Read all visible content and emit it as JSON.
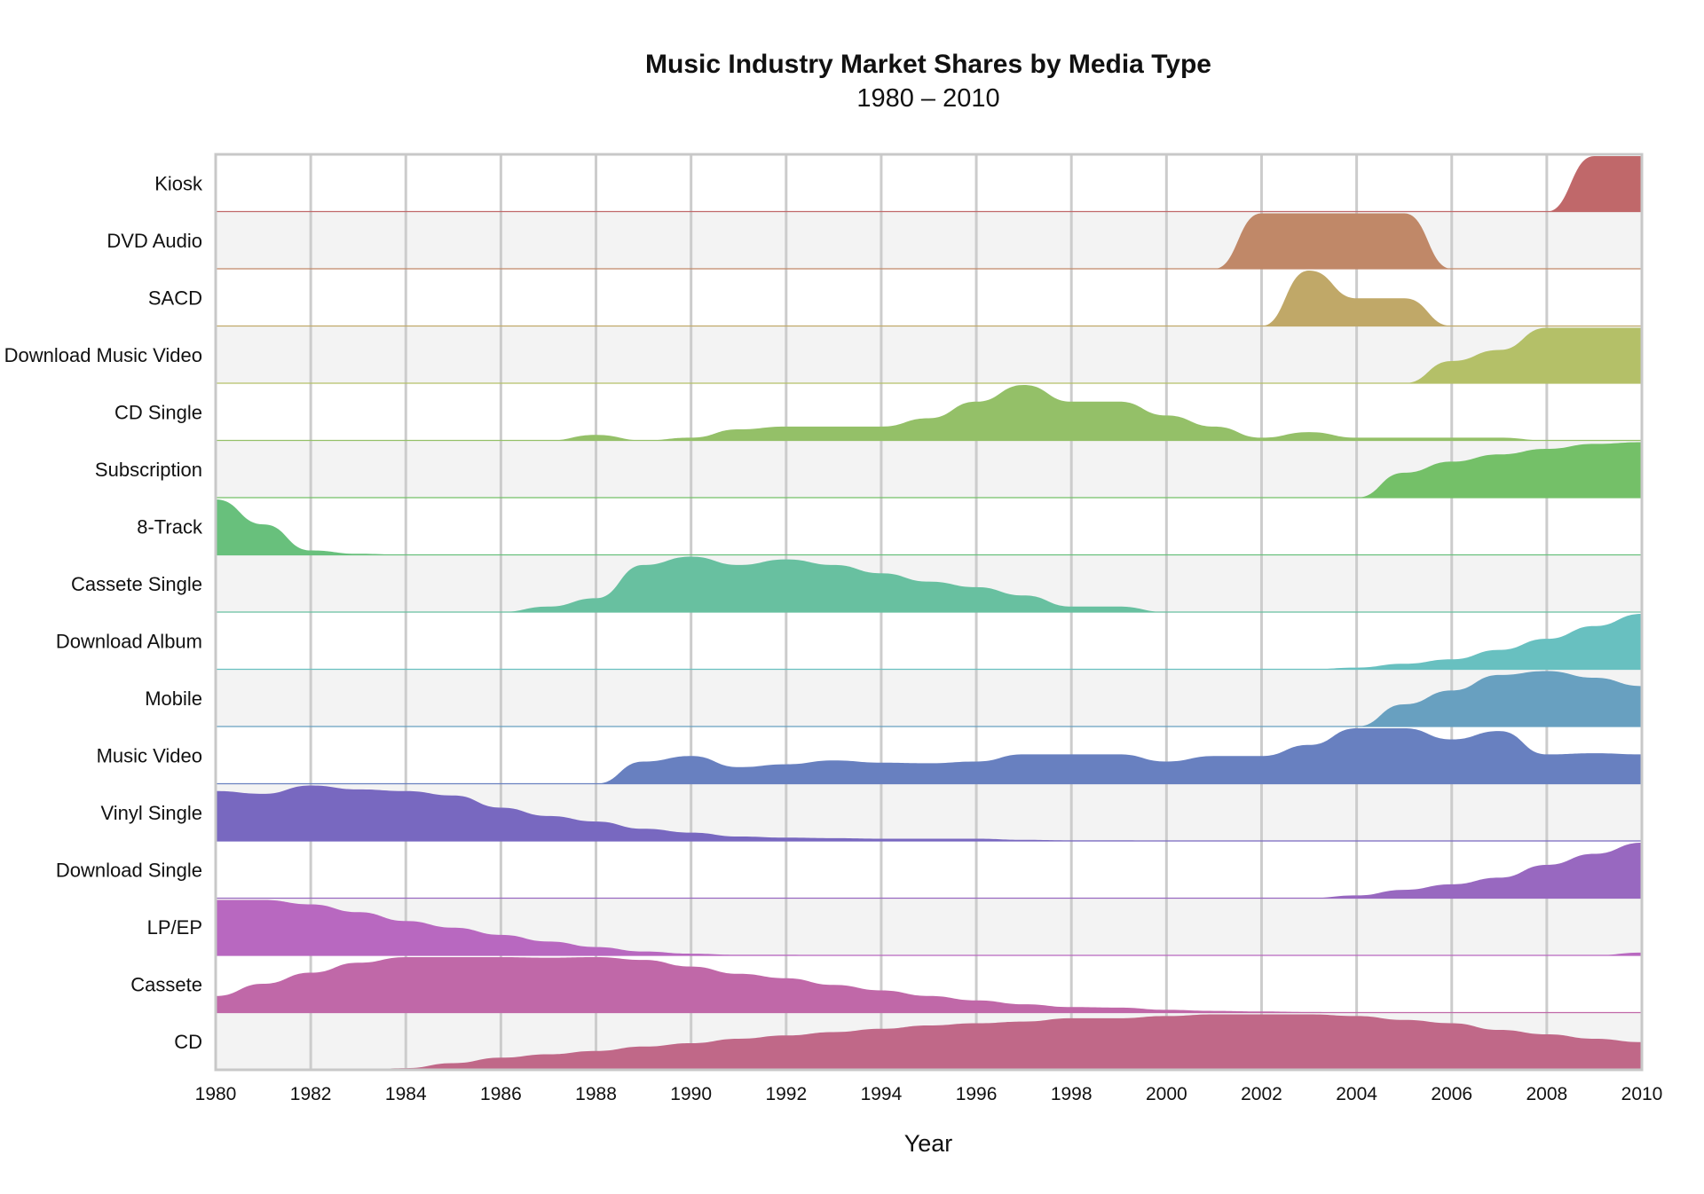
{
  "chart_data": {
    "type": "area",
    "layout": "small-multiples ridgeline, one row per media type, each row scaled to its own maximum",
    "title": "Music Industry Market Shares by Media Type",
    "subtitle": "1980 – 2010",
    "xlabel": "Year",
    "ylabel": "",
    "xlim": [
      1980,
      2010
    ],
    "ylim": [
      0,
      1
    ],
    "grid": true,
    "legend": "none",
    "x_ticks": [
      "1980",
      "1982",
      "1984",
      "1986",
      "1988",
      "1990",
      "1992",
      "1994",
      "1996",
      "1998",
      "2000",
      "2002",
      "2004",
      "2006",
      "2008",
      "2010"
    ],
    "x": [
      1980,
      1981,
      1982,
      1983,
      1984,
      1985,
      1986,
      1987,
      1988,
      1989,
      1990,
      1991,
      1992,
      1993,
      1994,
      1995,
      1996,
      1997,
      1998,
      1999,
      2000,
      2001,
      2002,
      2003,
      2004,
      2005,
      2006,
      2007,
      2008,
      2009,
      2010
    ],
    "series": [
      {
        "name": "Kiosk",
        "color": "#c0686a",
        "values": [
          0,
          0,
          0,
          0,
          0,
          0,
          0,
          0,
          0,
          0,
          0,
          0,
          0,
          0,
          0,
          0,
          0,
          0,
          0,
          0,
          0,
          0,
          0,
          0,
          0,
          0,
          0,
          0,
          0,
          1,
          1
        ]
      },
      {
        "name": "DVD Audio",
        "color": "#c08868",
        "values": [
          0,
          0,
          0,
          0,
          0,
          0,
          0,
          0,
          0,
          0,
          0,
          0,
          0,
          0,
          0,
          0,
          0,
          0,
          0,
          0,
          0,
          0,
          1,
          1,
          1,
          1,
          0,
          0,
          0,
          0,
          0
        ]
      },
      {
        "name": "SACD",
        "color": "#c0a868",
        "values": [
          0,
          0,
          0,
          0,
          0,
          0,
          0,
          0,
          0,
          0,
          0,
          0,
          0,
          0,
          0,
          0,
          0,
          0,
          0,
          0,
          0,
          0,
          0,
          1,
          0.5,
          0.5,
          0,
          0,
          0,
          0,
          0
        ]
      },
      {
        "name": "Download Music Video",
        "color": "#b4c068",
        "values": [
          0,
          0,
          0,
          0,
          0,
          0,
          0,
          0,
          0,
          0,
          0,
          0,
          0,
          0,
          0,
          0,
          0,
          0,
          0,
          0,
          0,
          0,
          0,
          0,
          0,
          0,
          0.4,
          0.6,
          1,
          1,
          1
        ]
      },
      {
        "name": "CD Single",
        "color": "#94c068",
        "values": [
          0,
          0,
          0,
          0,
          0,
          0,
          0,
          0,
          0.1,
          0,
          0.05,
          0.2,
          0.25,
          0.25,
          0.25,
          0.4,
          0.7,
          1,
          0.7,
          0.7,
          0.45,
          0.25,
          0.05,
          0.15,
          0.05,
          0.05,
          0.05,
          0.05,
          0,
          0,
          0
        ]
      },
      {
        "name": "Subscription",
        "color": "#74c068",
        "values": [
          0,
          0,
          0,
          0,
          0,
          0,
          0,
          0,
          0,
          0,
          0,
          0,
          0,
          0,
          0,
          0,
          0,
          0,
          0,
          0,
          0,
          0,
          0,
          0,
          0,
          0.45,
          0.65,
          0.78,
          0.88,
          0.97,
          1
        ]
      },
      {
        "name": "8-Track",
        "color": "#68c07c",
        "values": [
          1,
          0.55,
          0.08,
          0.02,
          0,
          0,
          0,
          0,
          0,
          0,
          0,
          0,
          0,
          0,
          0,
          0,
          0,
          0,
          0,
          0,
          0,
          0,
          0,
          0,
          0,
          0,
          0,
          0,
          0,
          0,
          0
        ]
      },
      {
        "name": "Cassete Single",
        "color": "#68c0a0",
        "values": [
          0,
          0,
          0,
          0,
          0,
          0,
          0,
          0.1,
          0.25,
          0.85,
          1,
          0.85,
          0.95,
          0.85,
          0.7,
          0.55,
          0.45,
          0.3,
          0.1,
          0.1,
          0,
          0,
          0,
          0,
          0,
          0,
          0,
          0,
          0,
          0,
          0
        ]
      },
      {
        "name": "Download Album",
        "color": "#68c0c0",
        "values": [
          0,
          0,
          0,
          0,
          0,
          0,
          0,
          0,
          0,
          0,
          0,
          0,
          0,
          0,
          0,
          0,
          0,
          0,
          0,
          0,
          0,
          0,
          0,
          0,
          0.03,
          0.1,
          0.18,
          0.35,
          0.55,
          0.78,
          1
        ]
      },
      {
        "name": "Mobile",
        "color": "#68a0c0",
        "values": [
          0,
          0,
          0,
          0,
          0,
          0,
          0,
          0,
          0,
          0,
          0,
          0,
          0,
          0,
          0,
          0,
          0,
          0,
          0,
          0,
          0,
          0,
          0,
          0,
          0,
          0.4,
          0.65,
          0.93,
          1,
          0.88,
          0.73
        ]
      },
      {
        "name": "Music Video",
        "color": "#6880c0",
        "values": [
          0,
          0,
          0,
          0,
          0,
          0,
          0,
          0,
          0,
          0.4,
          0.5,
          0.3,
          0.35,
          0.42,
          0.38,
          0.37,
          0.4,
          0.53,
          0.53,
          0.53,
          0.4,
          0.5,
          0.5,
          0.7,
          1,
          1,
          0.8,
          0.95,
          0.53,
          0.55,
          0.53
        ]
      },
      {
        "name": "Vinyl Single",
        "color": "#7868c0",
        "values": [
          0.9,
          0.85,
          1,
          0.93,
          0.9,
          0.82,
          0.6,
          0.45,
          0.35,
          0.22,
          0.15,
          0.08,
          0.06,
          0.05,
          0.04,
          0.04,
          0.04,
          0.02,
          0.01,
          0.01,
          0,
          0,
          0,
          0,
          0,
          0,
          0,
          0,
          0,
          0,
          0
        ]
      },
      {
        "name": "Download Single",
        "color": "#9868c0",
        "values": [
          0,
          0,
          0,
          0,
          0,
          0,
          0,
          0,
          0,
          0,
          0,
          0,
          0,
          0,
          0,
          0,
          0,
          0,
          0,
          0,
          0,
          0,
          0,
          0,
          0.05,
          0.15,
          0.25,
          0.37,
          0.6,
          0.8,
          1
        ]
      },
      {
        "name": "LP/EP",
        "color": "#b868c0",
        "values": [
          1,
          1,
          0.92,
          0.78,
          0.62,
          0.5,
          0.37,
          0.25,
          0.15,
          0.07,
          0.03,
          0.01,
          0.01,
          0,
          0,
          0,
          0,
          0,
          0,
          0,
          0,
          0,
          0,
          0,
          0,
          0,
          0,
          0,
          0,
          0,
          0.05
        ]
      },
      {
        "name": "Cassete",
        "color": "#c068a8",
        "values": [
          0.3,
          0.52,
          0.72,
          0.9,
          1,
          1,
          1,
          0.99,
          1,
          0.95,
          0.83,
          0.7,
          0.62,
          0.5,
          0.4,
          0.3,
          0.22,
          0.15,
          0.1,
          0.09,
          0.05,
          0.03,
          0.02,
          0.01,
          0,
          0,
          0,
          0,
          0,
          0,
          0
        ]
      },
      {
        "name": "CD",
        "color": "#c06888",
        "values": [
          0,
          0,
          0,
          0,
          0.03,
          0.12,
          0.22,
          0.28,
          0.34,
          0.42,
          0.48,
          0.56,
          0.62,
          0.68,
          0.74,
          0.8,
          0.84,
          0.87,
          0.93,
          0.93,
          0.97,
          1,
          1,
          1,
          0.97,
          0.9,
          0.84,
          0.72,
          0.64,
          0.56,
          0.5
        ]
      }
    ]
  }
}
